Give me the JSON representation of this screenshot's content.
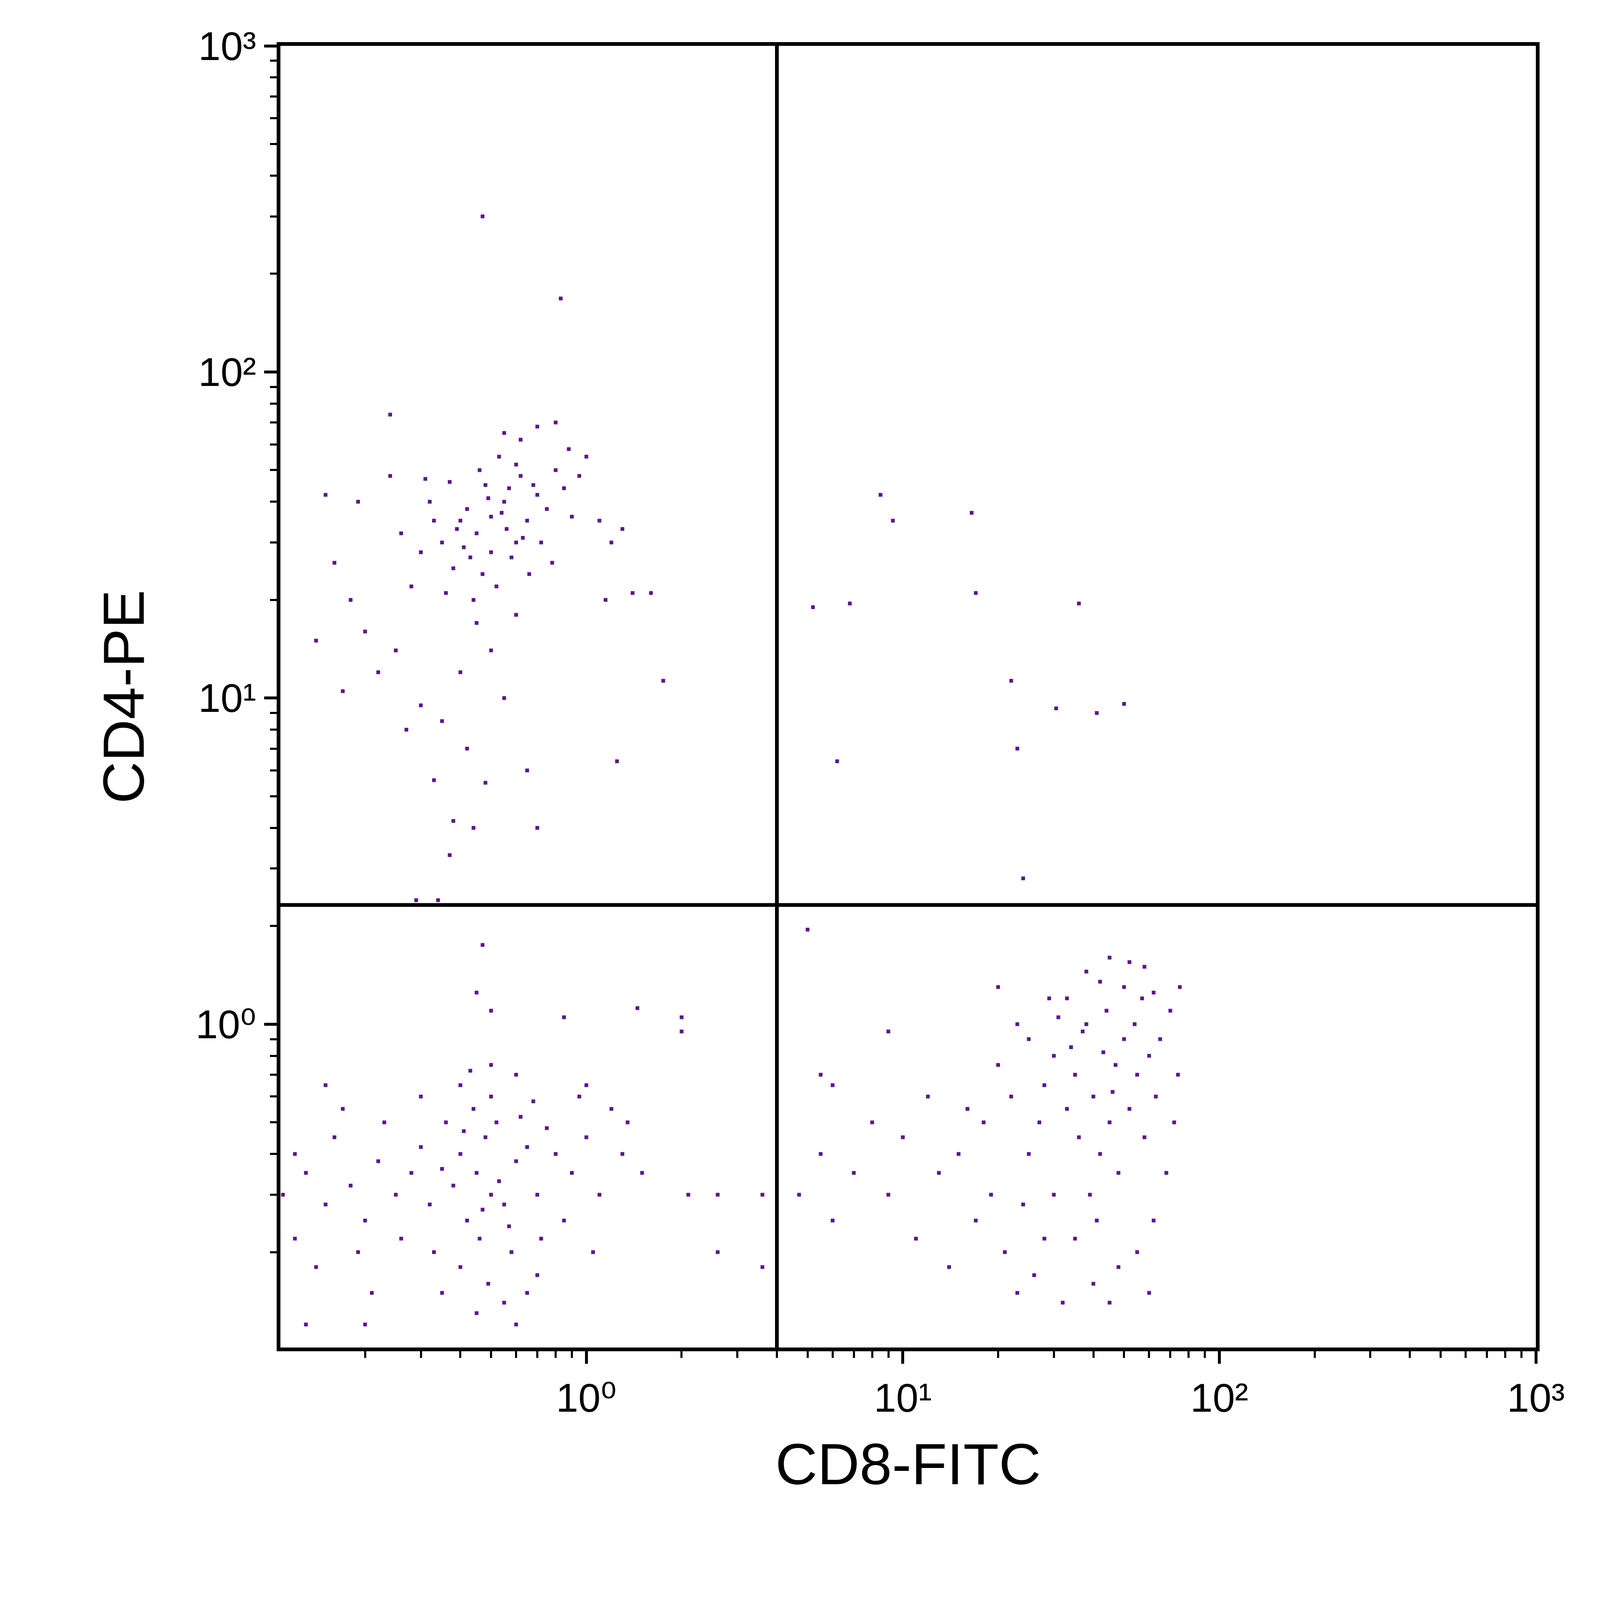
{
  "chart_data": {
    "type": "scatter",
    "x_label": "CD8-FITC",
    "y_label": "CD4-PE",
    "log": true,
    "grid": false,
    "color": "#5a1590",
    "marker": "dot",
    "xlim": [
      0.108,
      1000
    ],
    "ylim": [
      0.102,
      1000
    ],
    "xticks": [
      {
        "value": 1,
        "label": "10⁰"
      },
      {
        "value": 10,
        "label": "10¹"
      },
      {
        "value": 100,
        "label": "10²"
      },
      {
        "value": 1000,
        "label": "10³"
      }
    ],
    "yticks": [
      {
        "value": 1,
        "label": "10⁰"
      },
      {
        "value": 10,
        "label": "10¹"
      },
      {
        "value": 100,
        "label": "10²"
      },
      {
        "value": 1000,
        "label": "10³"
      }
    ],
    "quadrant": {
      "x": 4.0,
      "y": 2.32
    },
    "x": [
      0.45,
      0.5,
      0.4,
      0.55,
      0.38,
      0.6,
      0.48,
      0.52,
      0.42,
      0.65,
      0.35,
      0.7,
      0.58,
      0.46,
      0.32,
      0.62,
      0.44,
      0.75,
      0.3,
      0.5,
      0.56,
      0.41,
      0.68,
      0.37,
      0.53,
      0.8,
      0.28,
      0.47,
      0.63,
      0.39,
      0.72,
      0.57,
      0.33,
      0.49,
      0.85,
      0.26,
      0.6,
      0.43,
      0.78,
      0.36,
      0.54,
      0.66,
      0.31,
      0.9,
      0.45,
      0.5,
      0.4,
      0.55,
      0.35,
      0.6,
      0.42,
      0.65,
      0.3,
      0.48,
      0.7,
      0.38,
      0.2,
      0.22,
      0.18,
      0.16,
      0.14,
      0.17,
      0.25,
      0.27,
      0.15,
      0.19,
      0.24,
      1.0,
      1.1,
      1.2,
      1.15,
      1.3,
      1.4,
      1.6,
      1.75,
      1.25,
      0.95,
      0.88,
      0.62,
      0.7,
      0.55,
      0.8,
      0.47,
      0.83,
      0.24,
      0.29,
      0.34,
      0.44,
      0.37,
      0.33,
      0.45,
      0.5,
      0.4,
      0.55,
      0.48,
      0.42,
      0.6,
      0.38,
      0.52,
      0.46,
      0.65,
      0.35,
      0.7,
      0.44,
      0.58,
      0.32,
      0.5,
      0.4,
      0.62,
      0.3,
      0.75,
      0.47,
      0.53,
      0.41,
      0.57,
      0.36,
      0.68,
      0.28,
      0.8,
      0.49,
      0.25,
      0.22,
      0.2,
      0.18,
      0.15,
      0.13,
      0.12,
      0.16,
      0.14,
      0.19,
      0.23,
      0.26,
      0.17,
      0.21,
      0.12,
      0.11,
      0.9,
      1.0,
      1.1,
      0.95,
      1.2,
      1.3,
      1.5,
      0.85,
      1.05,
      0.6,
      0.5,
      0.4,
      0.55,
      0.45,
      0.6,
      0.35,
      0.7,
      0.3,
      0.33,
      0.72,
      0.65,
      0.43,
      1.0,
      1.35,
      2.0,
      2.0,
      1.45,
      0.45,
      0.5,
      0.47,
      0.85,
      2.1,
      2.6,
      2.6,
      3.6,
      3.6,
      0.15,
      0.13,
      0.2,
      35,
      40,
      30,
      45,
      50,
      38,
      42,
      55,
      33,
      48,
      28,
      60,
      36,
      44,
      52,
      25,
      39,
      47,
      31,
      58,
      34,
      41,
      54,
      27,
      63,
      46,
      37,
      29,
      43,
      50,
      57,
      65,
      70,
      72,
      68,
      62,
      55,
      48,
      40,
      35,
      45,
      60,
      30,
      25,
      22,
      20,
      18,
      15,
      13,
      12,
      10,
      9,
      8,
      7,
      6,
      5.5,
      6,
      9,
      11,
      14,
      17,
      19,
      21,
      23,
      26,
      32,
      16,
      24,
      28,
      20,
      23,
      38,
      45,
      52,
      58,
      33,
      42,
      62,
      75,
      74,
      5,
      4.7,
      5.5,
      8.5,
      9.3,
      16.5,
      17,
      5.2,
      6.8,
      36,
      22,
      30.5,
      41,
      50,
      6.2,
      23,
      24
    ],
    "values": [
      32,
      28,
      35,
      40,
      25,
      30,
      45,
      22,
      38,
      35,
      30,
      42,
      27,
      50,
      40,
      48,
      20,
      38,
      28,
      36,
      33,
      29,
      45,
      46,
      55,
      50,
      22,
      24,
      31,
      33,
      30,
      44,
      35,
      41,
      44,
      32,
      52,
      27,
      26,
      21,
      37,
      24,
      47,
      36,
      17,
      14,
      12,
      10,
      8.5,
      18,
      7,
      6,
      9.5,
      5.5,
      4,
      4.2,
      16,
      12,
      20,
      26,
      15,
      10.5,
      14,
      8,
      42,
      40,
      48,
      55,
      35,
      30,
      20,
      33,
      21,
      21,
      11.3,
      6.4,
      48,
      58,
      62,
      68,
      65,
      70,
      300,
      168,
      74,
      2.4,
      2.4,
      4,
      3.3,
      5.6,
      0.35,
      0.3,
      0.4,
      0.28,
      0.45,
      0.25,
      0.38,
      0.32,
      0.5,
      0.22,
      0.42,
      0.36,
      0.3,
      0.55,
      0.2,
      0.28,
      0.6,
      0.18,
      0.52,
      0.42,
      0.48,
      0.27,
      0.33,
      0.47,
      0.24,
      0.5,
      0.58,
      0.35,
      0.4,
      0.16,
      0.3,
      0.38,
      0.25,
      0.32,
      0.28,
      0.35,
      0.22,
      0.45,
      0.18,
      0.2,
      0.5,
      0.22,
      0.55,
      0.15,
      0.4,
      0.3,
      0.35,
      0.45,
      0.3,
      0.6,
      0.55,
      0.4,
      0.35,
      0.25,
      0.2,
      0.7,
      0.75,
      0.65,
      0.14,
      0.13,
      0.12,
      0.15,
      0.17,
      0.6,
      0.2,
      0.22,
      0.15,
      0.72,
      0.65,
      0.5,
      1.05,
      0.95,
      1.12,
      1.25,
      1.1,
      1.75,
      1.05,
      0.3,
      0.3,
      0.2,
      0.3,
      0.18,
      0.65,
      0.12,
      0.12,
      0.7,
      0.6,
      0.8,
      0.5,
      0.9,
      1.0,
      0.4,
      0.7,
      0.55,
      0.35,
      0.65,
      0.8,
      0.45,
      1.1,
      0.55,
      0.9,
      0.3,
      0.75,
      1.05,
      0.45,
      0.85,
      0.25,
      1.0,
      0.5,
      0.6,
      0.62,
      0.95,
      1.2,
      0.82,
      1.3,
      1.2,
      0.9,
      1.1,
      0.5,
      0.35,
      0.25,
      0.2,
      0.18,
      0.16,
      0.22,
      0.14,
      0.15,
      0.3,
      0.4,
      0.6,
      0.75,
      0.5,
      0.4,
      0.35,
      0.6,
      0.45,
      0.3,
      0.5,
      0.35,
      0.25,
      0.4,
      0.65,
      0.95,
      0.22,
      0.18,
      0.25,
      0.3,
      0.2,
      0.15,
      0.17,
      0.14,
      0.55,
      0.28,
      0.22,
      1.3,
      1.0,
      1.45,
      1.6,
      1.55,
      1.5,
      1.2,
      1.35,
      1.25,
      1.3,
      0.7,
      1.95,
      0.3,
      0.7,
      42,
      35,
      37,
      21,
      19,
      19.5,
      19.5,
      11.3,
      9.3,
      9,
      9.6,
      6.4,
      7,
      2.8
    ]
  }
}
